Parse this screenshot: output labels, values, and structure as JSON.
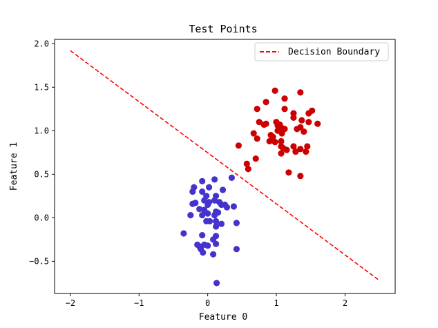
{
  "chart_data": {
    "type": "scatter",
    "title": "Test Points",
    "xlabel": "Feature 0",
    "ylabel": "Feature 1",
    "xlim": [
      -2.23,
      2.73
    ],
    "ylim": [
      -0.87,
      2.05
    ],
    "xticks": [
      -2,
      -1,
      0,
      1,
      2
    ],
    "xtick_labels": [
      "−2",
      "−1",
      "0",
      "1",
      "2"
    ],
    "yticks": [
      -0.5,
      0.0,
      0.5,
      1.0,
      1.5,
      2.0
    ],
    "ytick_labels": [
      "−0.5",
      "0.0",
      "0.5",
      "1.0",
      "1.5",
      "2.0"
    ],
    "grid": false,
    "legend_position": "top-right",
    "series": [
      {
        "color": "#cc0000",
        "points": [
          [
            0.72,
            1.25
          ],
          [
            0.85,
            1.33
          ],
          [
            0.98,
            1.46
          ],
          [
            1.35,
            1.44
          ],
          [
            1.12,
            1.37
          ],
          [
            1.12,
            1.25
          ],
          [
            1.25,
            1.2
          ],
          [
            1.47,
            1.2
          ],
          [
            1.52,
            1.23
          ],
          [
            1.6,
            1.08
          ],
          [
            1.47,
            1.1
          ],
          [
            1.37,
            1.12
          ],
          [
            1.35,
            1.04
          ],
          [
            1.3,
            1.02
          ],
          [
            1.25,
            1.15
          ],
          [
            0.75,
            1.1
          ],
          [
            0.82,
            1.07
          ],
          [
            0.85,
            1.08
          ],
          [
            1.0,
            1.1
          ],
          [
            1.02,
            1.06
          ],
          [
            1.05,
            1.07
          ],
          [
            1.08,
            1.03
          ],
          [
            1.12,
            1.02
          ],
          [
            1.02,
            1.0
          ],
          [
            0.95,
            0.93
          ],
          [
            0.92,
            0.95
          ],
          [
            0.9,
            0.88
          ],
          [
            0.95,
            0.89
          ],
          [
            0.98,
            0.87
          ],
          [
            1.08,
            0.97
          ],
          [
            1.07,
            0.88
          ],
          [
            1.07,
            0.82
          ],
          [
            1.1,
            0.8
          ],
          [
            1.15,
            0.78
          ],
          [
            1.25,
            0.82
          ],
          [
            1.28,
            0.76
          ],
          [
            1.35,
            0.79
          ],
          [
            1.43,
            0.76
          ],
          [
            1.45,
            0.82
          ],
          [
            1.4,
            0.99
          ],
          [
            0.67,
            0.97
          ],
          [
            0.72,
            0.91
          ],
          [
            0.45,
            0.83
          ],
          [
            0.7,
            0.68
          ],
          [
            0.57,
            0.62
          ],
          [
            0.59,
            0.56
          ],
          [
            1.07,
            0.74
          ],
          [
            1.18,
            0.52
          ],
          [
            1.35,
            0.48
          ]
        ]
      },
      {
        "color": "#4433cc",
        "points": [
          [
            -0.08,
            0.42
          ],
          [
            0.1,
            0.44
          ],
          [
            0.35,
            0.46
          ],
          [
            0.02,
            0.35
          ],
          [
            -0.2,
            0.35
          ],
          [
            -0.22,
            0.3
          ],
          [
            -0.08,
            0.3
          ],
          [
            0.22,
            0.32
          ],
          [
            -0.02,
            0.25
          ],
          [
            0.12,
            0.25
          ],
          [
            -0.05,
            0.2
          ],
          [
            0.02,
            0.18
          ],
          [
            0.1,
            0.2
          ],
          [
            0.17,
            0.18
          ],
          [
            0.25,
            0.15
          ],
          [
            -0.22,
            0.16
          ],
          [
            -0.18,
            0.17
          ],
          [
            0.0,
            0.15
          ],
          [
            0.2,
            0.15
          ],
          [
            0.28,
            0.12
          ],
          [
            0.38,
            0.13
          ],
          [
            -0.12,
            0.1
          ],
          [
            -0.05,
            0.09
          ],
          [
            0.0,
            0.05
          ],
          [
            0.12,
            0.07
          ],
          [
            -0.08,
            0.03
          ],
          [
            0.1,
            0.03
          ],
          [
            0.15,
            0.06
          ],
          [
            -0.25,
            0.03
          ],
          [
            -0.02,
            -0.04
          ],
          [
            0.03,
            -0.04
          ],
          [
            0.12,
            -0.04
          ],
          [
            0.2,
            -0.07
          ],
          [
            0.12,
            -0.1
          ],
          [
            0.42,
            -0.06
          ],
          [
            -0.35,
            -0.18
          ],
          [
            -0.08,
            -0.2
          ],
          [
            0.12,
            -0.21
          ],
          [
            0.08,
            -0.25
          ],
          [
            -0.15,
            -0.31
          ],
          [
            -0.12,
            -0.33
          ],
          [
            -0.05,
            -0.31
          ],
          [
            0.0,
            -0.32
          ],
          [
            0.12,
            -0.3
          ],
          [
            -0.1,
            -0.36
          ],
          [
            -0.07,
            -0.4
          ],
          [
            0.08,
            -0.42
          ],
          [
            0.42,
            -0.36
          ],
          [
            0.13,
            -0.75
          ]
        ]
      }
    ],
    "boundary": {
      "name": "Decision Boundary",
      "color": "#ff0000",
      "dash": "dashed",
      "points": [
        [
          -2.0,
          1.92
        ],
        [
          2.5,
          -0.72
        ]
      ]
    }
  }
}
